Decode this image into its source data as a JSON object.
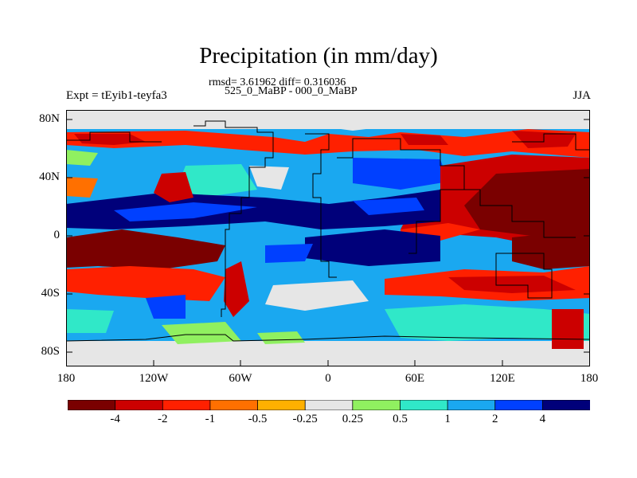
{
  "title": "Precipitation (in mm/day)",
  "stats_line": "rmsd= 3.61962  diff= 0.316036",
  "comparison": "525_0_MaBP - 000_0_MaBP",
  "experiment_label": "Expt = tEyib1-teyfa3",
  "season": "JJA",
  "lat_labels": [
    "80N",
    "40N",
    "0",
    "40S",
    "80S"
  ],
  "lon_labels": [
    "180",
    "120W",
    "60W",
    "0",
    "60E",
    "120E",
    "180"
  ],
  "colorbar": {
    "colors": [
      "#7a0000",
      "#cc0000",
      "#ff2000",
      "#ff7000",
      "#ffb000",
      "#e6e6e6",
      "#90f060",
      "#30e8c8",
      "#1aa8f0",
      "#0040ff",
      "#00007a"
    ],
    "labels": [
      "-4",
      "-2",
      "-1",
      "-0.5",
      "-0.25",
      "0.25",
      "0.5",
      "1",
      "2",
      "4"
    ]
  }
}
